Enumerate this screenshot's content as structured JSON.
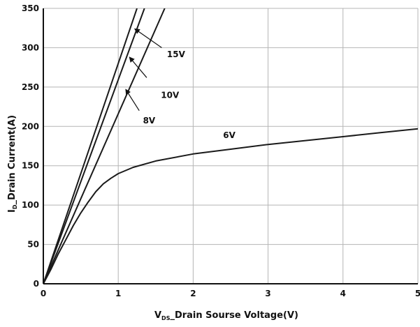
{
  "chart_data": {
    "type": "line",
    "title": "",
    "xlabel": {
      "main": "V",
      "sub": "DS",
      "rest": "_Drain Sourse Voltage(V)"
    },
    "ylabel": {
      "main": "I",
      "sub": "D",
      "rest": "_Drain Current(A)"
    },
    "xlim": [
      0,
      5
    ],
    "ylim": [
      0,
      350
    ],
    "xticks": [
      0,
      1,
      2,
      3,
      4,
      5
    ],
    "yticks": [
      0,
      50,
      100,
      150,
      200,
      250,
      300,
      350
    ],
    "grid": true,
    "legend": "none",
    "series": [
      {
        "name": "15V",
        "x": [
          0,
          1.25
        ],
        "y": [
          0,
          350
        ]
      },
      {
        "name": "10V",
        "x": [
          0,
          1.35
        ],
        "y": [
          0,
          350
        ]
      },
      {
        "name": "8V",
        "x": [
          0,
          1.62
        ],
        "y": [
          0,
          350
        ]
      },
      {
        "name": "6V",
        "x": [
          0,
          0.1,
          0.2,
          0.3,
          0.4,
          0.5,
          0.6,
          0.7,
          0.8,
          0.9,
          1.0,
          1.2,
          1.5,
          2.0,
          2.5,
          3.0,
          3.5,
          4.0,
          4.5,
          5.0
        ],
        "y": [
          0,
          18,
          38,
          56,
          74,
          90,
          104,
          117,
          127,
          134,
          140,
          148,
          156,
          165,
          171,
          177,
          182,
          187,
          192,
          197
        ]
      }
    ],
    "annotations": [
      {
        "text": "15V",
        "x": 1.65,
        "y": 288,
        "arrow_from": [
          1.58,
          300
        ],
        "arrow_to": [
          1.22,
          324
        ]
      },
      {
        "text": "10V",
        "x": 1.57,
        "y": 236,
        "arrow_from": [
          1.38,
          262
        ],
        "arrow_to": [
          1.15,
          288
        ]
      },
      {
        "text": "8V",
        "x": 1.33,
        "y": 204,
        "arrow_from": [
          1.28,
          220
        ],
        "arrow_to": [
          1.1,
          247
        ]
      },
      {
        "text": "6V",
        "x": 2.4,
        "y": 185
      }
    ]
  }
}
